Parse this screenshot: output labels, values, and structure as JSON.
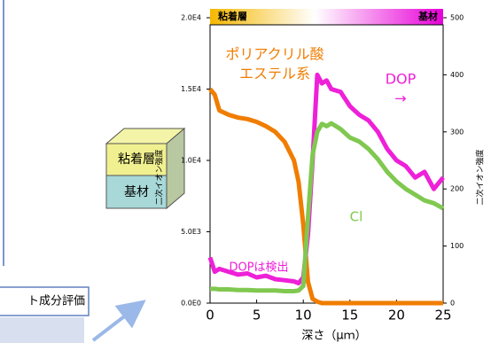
{
  "diagram": {
    "layers": [
      "粘着層",
      "基材"
    ],
    "box_label": "ト成分評価"
  },
  "chart_data": {
    "type": "line",
    "header": {
      "left": "粘着層",
      "right": "基材"
    },
    "xlabel": "深さ（μｍ）",
    "ylabel": "二次イオン強度",
    "y2label": "二次イオン強度",
    "x": [
      0,
      0.5,
      1,
      2,
      3,
      4,
      5,
      6,
      7,
      8,
      9,
      9.5,
      10,
      10.5,
      11,
      11.5,
      12,
      12.5,
      13,
      14,
      15,
      16,
      17,
      18,
      19,
      20,
      21,
      22,
      23,
      24,
      25
    ],
    "xlim": [
      0,
      25
    ],
    "xticks": [
      0,
      5,
      10,
      15,
      20,
      25
    ],
    "ylim": [
      0,
      20000
    ],
    "yticks": [
      {
        "value": 0,
        "label": "0.0E0"
      },
      {
        "value": 5000,
        "label": "5.0E3"
      },
      {
        "value": 10000,
        "label": "1.0E4"
      },
      {
        "value": 15000,
        "label": "1.5E4"
      },
      {
        "value": 20000,
        "label": "2.0E4"
      }
    ],
    "y2lim": [
      0,
      500
    ],
    "y2ticks": [
      0,
      100,
      200,
      300,
      400,
      500
    ],
    "series": [
      {
        "color": "#f07d00",
        "values": [
          15000,
          14600,
          13500,
          13200,
          13000,
          12900,
          12700,
          12400,
          12000,
          11300,
          10000,
          8500,
          5500,
          1500,
          300,
          100,
          0,
          0,
          0,
          0,
          0,
          0,
          0,
          0,
          0,
          0,
          0,
          0,
          0,
          0,
          0
        ]
      },
      {
        "color": "#ee20d8",
        "axis": "y2",
        "values": [
          80,
          55,
          60,
          55,
          50,
          52,
          45,
          48,
          42,
          40,
          38,
          35,
          45,
          120,
          250,
          400,
          385,
          390,
          375,
          370,
          345,
          330,
          320,
          300,
          270,
          250,
          240,
          220,
          230,
          200,
          220
        ]
      },
      {
        "color": "#80c850",
        "axis": "y2",
        "values": [
          25,
          25,
          24,
          24,
          23,
          23,
          22,
          22,
          22,
          21,
          21,
          22,
          30,
          150,
          260,
          300,
          314,
          310,
          315,
          305,
          290,
          283,
          270,
          252,
          230,
          213,
          200,
          190,
          180,
          175,
          166
        ]
      }
    ],
    "annotations": [
      {
        "text": "ポリアクリル酸",
        "color": "#f07d00"
      },
      {
        "text": "エステル系",
        "color": "#f07d00"
      },
      {
        "text": "DOP",
        "color": "#ee20d8"
      },
      {
        "text": "→",
        "color": "#ee20d8"
      },
      {
        "text": "Cl",
        "color": "#80c850"
      },
      {
        "text": "DOPは検出",
        "color": "#ee20d8"
      }
    ]
  }
}
